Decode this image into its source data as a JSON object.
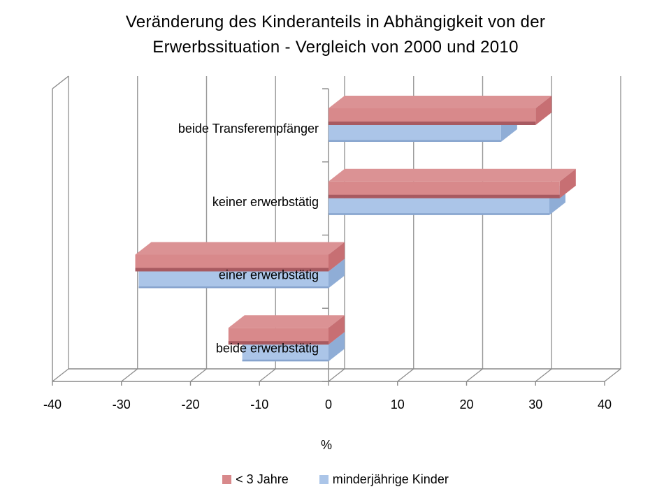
{
  "title_lines": [
    "Veränderung des Kinderanteils in Abhängigkeit von der",
    "Erwerbssituation - Vergleich von 2000 und 2010"
  ],
  "chart_data": {
    "type": "bar",
    "style": "3d",
    "orientation": "horizontal",
    "title": "Veränderung des Kinderanteils in Abhängigkeit von der Erwerbssituation - Vergleich von 2000 und 2010",
    "categories": [
      "beide Transferempfänger",
      "keiner erwerbstätig",
      "einer erwerbstätig",
      "beide erwerbstätig"
    ],
    "series": [
      {
        "name": "< 3 Jahre",
        "color": "#d8898b",
        "color_top": "#db9294",
        "color_side": "#c76f73",
        "color_edge": "#a85a61",
        "values": [
          30,
          33.5,
          -28,
          -14.5
        ]
      },
      {
        "name": "minderjährige Kinder",
        "color": "#abc5e8",
        "color_top": "#b6cdee",
        "color_side": "#8fadd6",
        "color_edge": "#86a3cd",
        "values": [
          25,
          32,
          -27.5,
          -12.5
        ]
      }
    ],
    "xlabel": "%",
    "xlim": [
      -40,
      40
    ],
    "xticks": [
      -40,
      -30,
      -20,
      -10,
      0,
      10,
      20,
      30,
      40
    ],
    "grid": true,
    "legend_position": "bottom"
  },
  "colors": {
    "gridline": "#989898",
    "wall": "#8a8a8a",
    "text": "#000000",
    "background": "#ffffff"
  }
}
